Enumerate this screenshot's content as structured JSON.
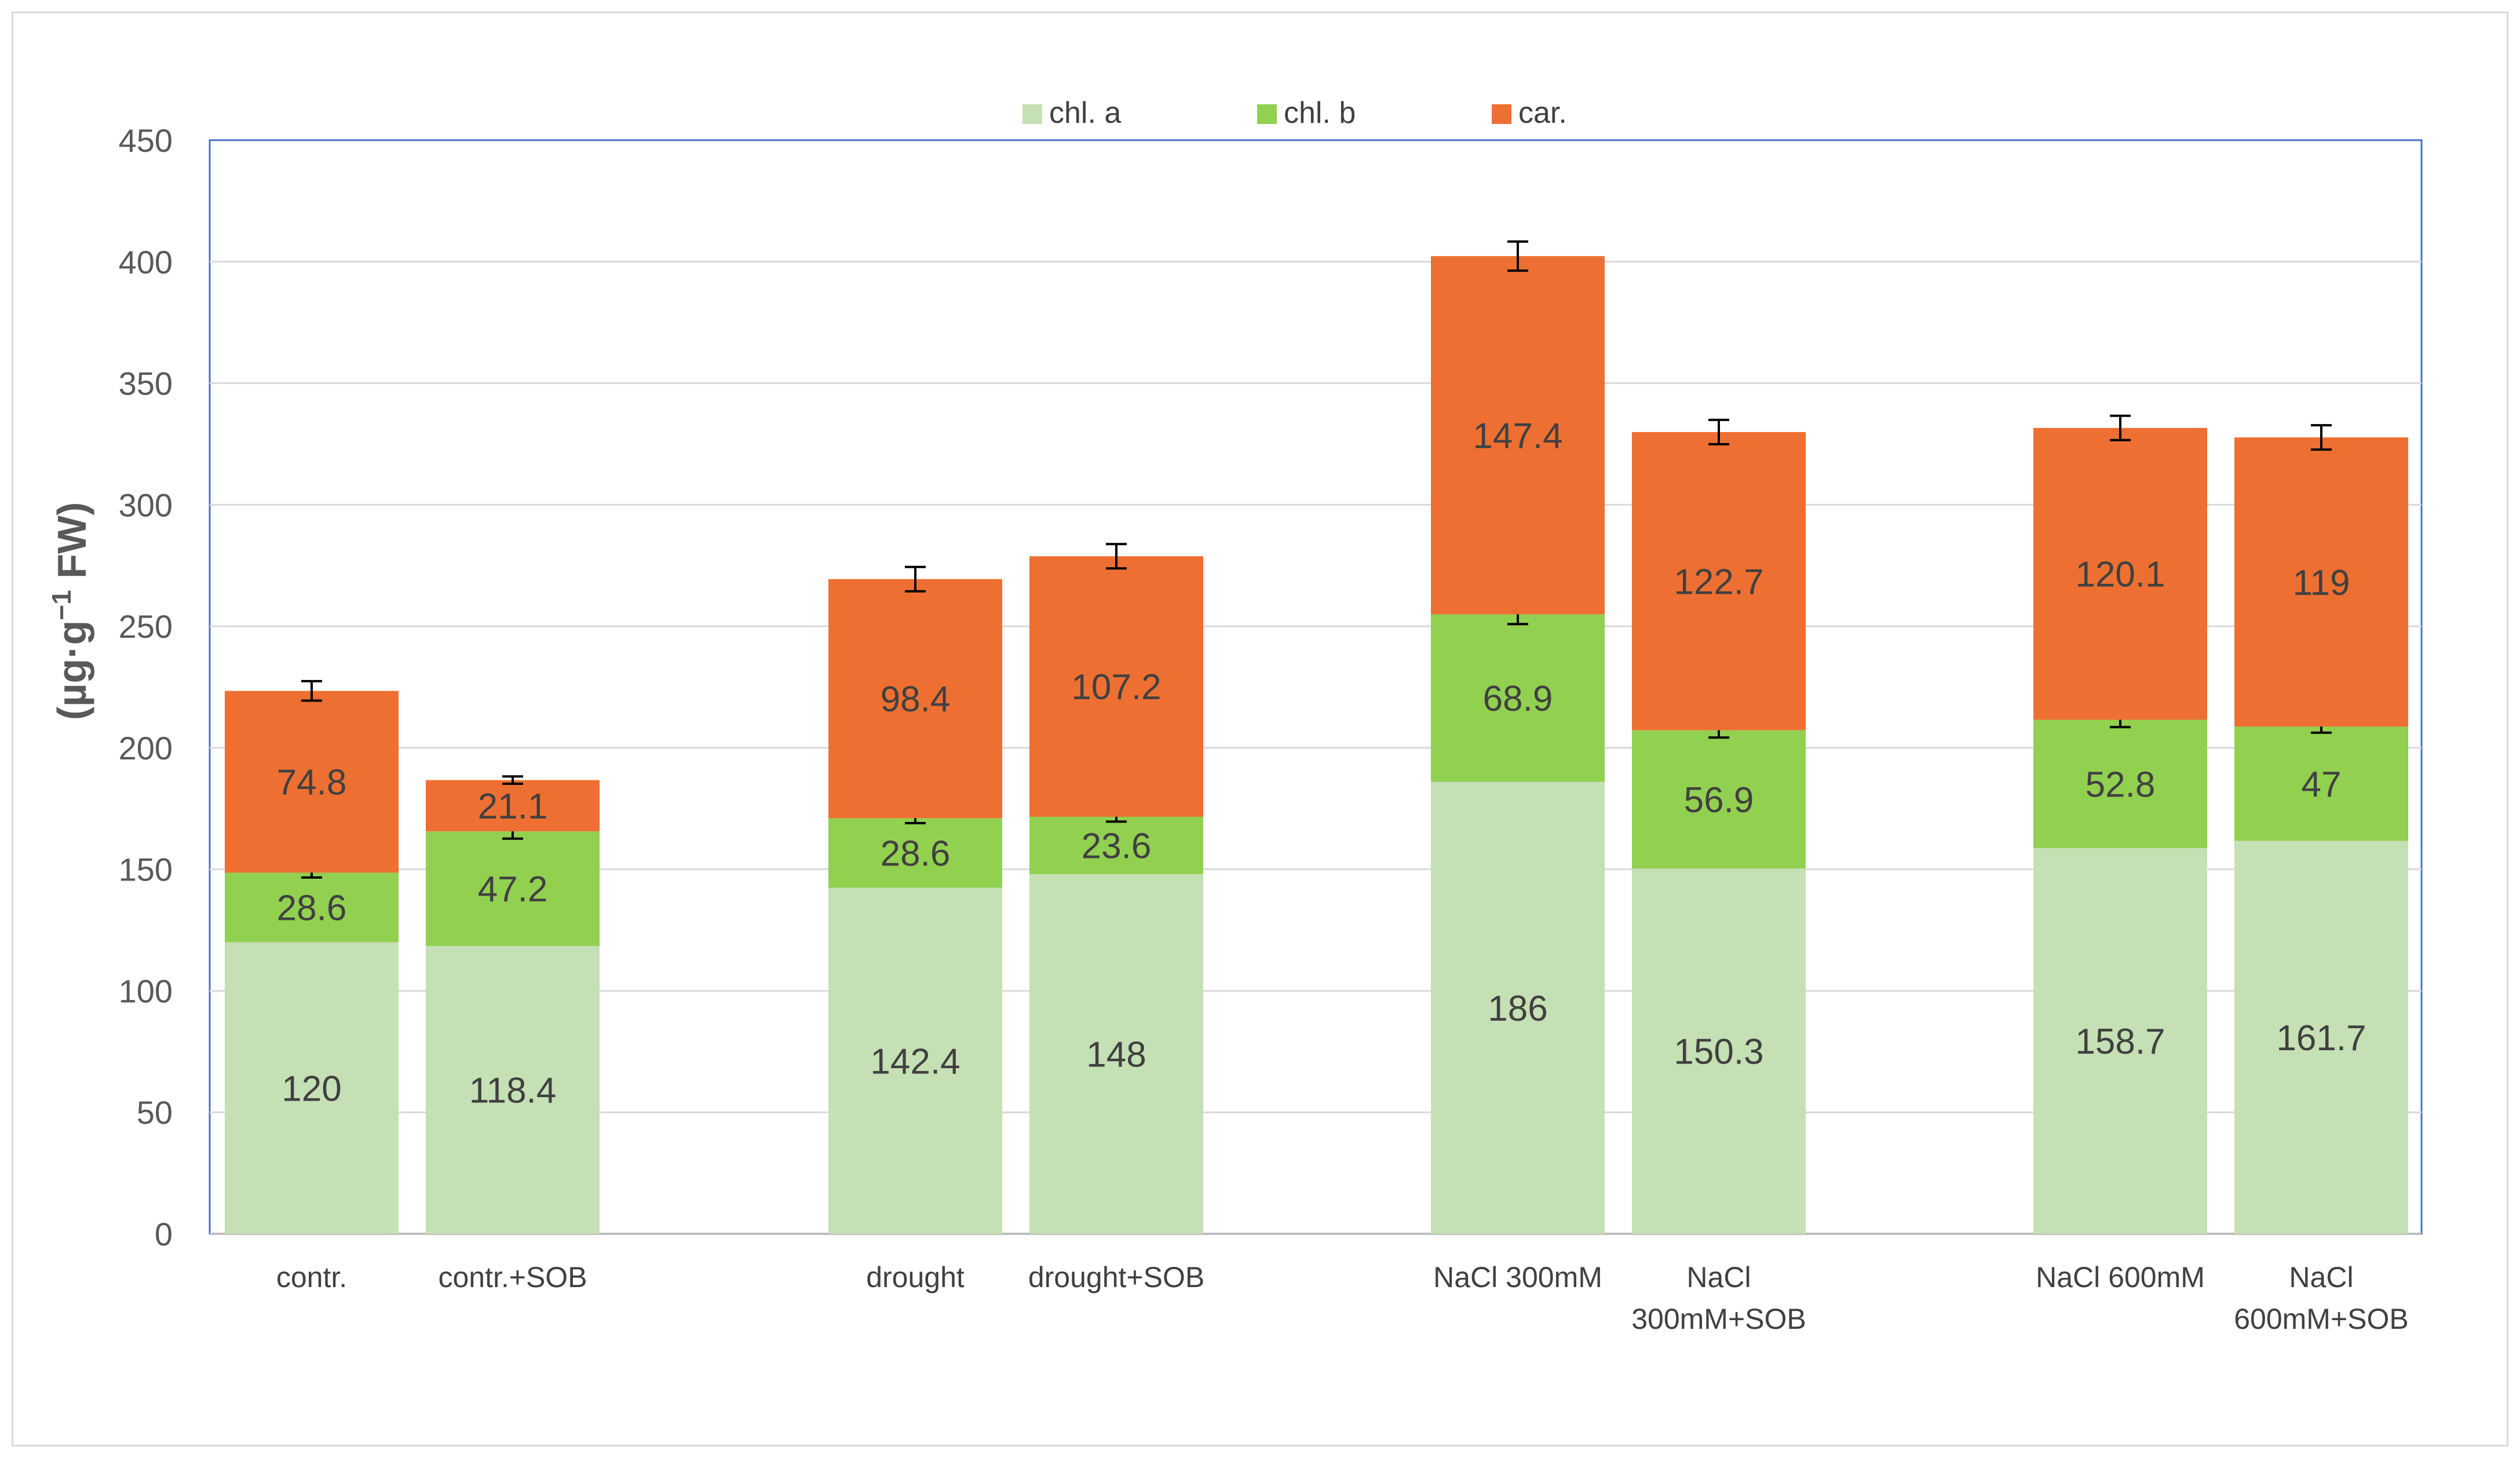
{
  "chart_data": {
    "type": "bar",
    "stacked": true,
    "title": "",
    "xlabel": "",
    "ylabel": {
      "prefix": "(µg·g",
      "sup": "−1",
      "suffix": " FW)"
    },
    "ylim": [
      0,
      450
    ],
    "yticks": [
      0,
      50,
      100,
      150,
      200,
      250,
      300,
      350,
      400,
      450
    ],
    "grid": true,
    "legend_position": "top-center",
    "categories": [
      [
        "contr."
      ],
      [
        "contr.+SOB"
      ],
      [
        "drought"
      ],
      [
        "drought+SOB"
      ],
      [
        "NaCl 300mM"
      ],
      [
        "NaCl",
        "300mM+SOB"
      ],
      [
        "NaCl 600mM"
      ],
      [
        "NaCl",
        "600mM+SOB"
      ]
    ],
    "series": [
      {
        "name": "chl. a",
        "color": "#c5e0b4",
        "values": [
          120,
          118.4,
          142.4,
          148,
          186,
          150.3,
          158.7,
          161.7
        ],
        "labels": [
          "120",
          "118.4",
          "142.4",
          "148",
          "186",
          "150.3",
          "158.7",
          "161.7"
        ],
        "errors": [
          0,
          0,
          0,
          0,
          0,
          0,
          0,
          0
        ]
      },
      {
        "name": "chl. b",
        "color": "#92d050",
        "values": [
          28.6,
          47.2,
          28.6,
          23.6,
          68.9,
          56.9,
          52.8,
          47
        ],
        "labels": [
          "28.6",
          "47.2",
          "28.6",
          "23.6",
          "68.9",
          "56.9",
          "52.8",
          "47"
        ],
        "errors": [
          2,
          3,
          2,
          2,
          4,
          3,
          3,
          2.5
        ]
      },
      {
        "name": "car.",
        "color": "#ed7032",
        "values": [
          74.8,
          21.1,
          98.4,
          107.2,
          147.4,
          122.7,
          120.1,
          119
        ],
        "labels": [
          "74.8",
          "21.1",
          "98.4",
          "107.2",
          "147.4",
          "122.7",
          "120.1",
          "119"
        ],
        "errors": [
          4,
          1.5,
          5,
          5,
          6,
          5,
          5,
          5
        ]
      }
    ]
  }
}
